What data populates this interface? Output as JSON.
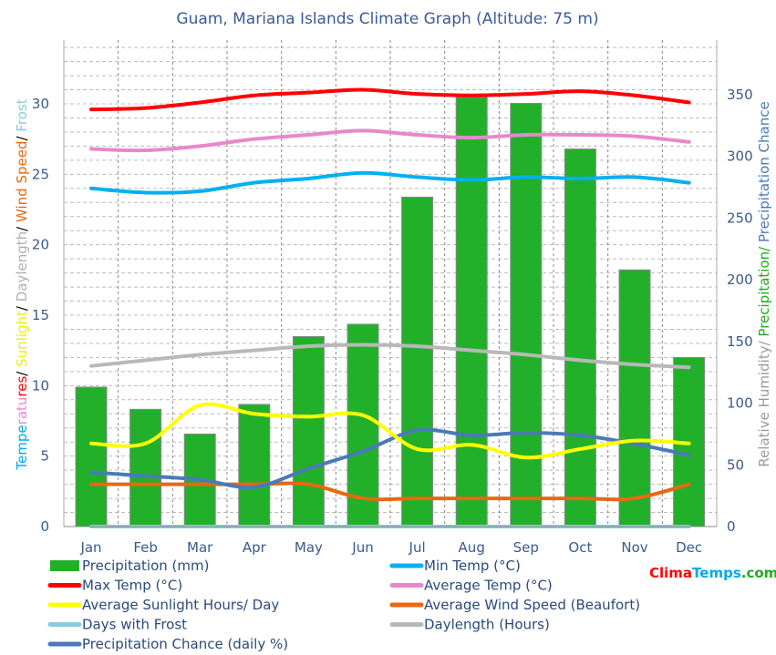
{
  "chart_data": {
    "type": "bar+line",
    "title": "Guam, Mariana Islands Climate Graph (Altitude: 75 m)",
    "categories": [
      "Jan",
      "Feb",
      "Mar",
      "Apr",
      "May",
      "Jun",
      "Jul",
      "Aug",
      "Sep",
      "Oct",
      "Nov",
      "Dec"
    ],
    "left_axis": {
      "label_parts": [
        {
          "text": "Tempe",
          "color": "#00aaee"
        },
        {
          "text": "ratu",
          "color": "#e888cc"
        },
        {
          "text": "res",
          "color": "#ff0000"
        },
        {
          "text": "/ ",
          "color": "#000000"
        },
        {
          "text": "Sunlight",
          "color": "#f0f000"
        },
        {
          "text": "/ ",
          "color": "#000000"
        },
        {
          "text": "Daylength",
          "color": "#b0b0b0"
        },
        {
          "text": "/ ",
          "color": "#000000"
        },
        {
          "text": "Wind Speed",
          "color": "#e86810"
        },
        {
          "text": "/ ",
          "color": "#000000"
        },
        {
          "text": "Frost",
          "color": "#88ccdd"
        }
      ],
      "ylim": [
        0,
        34
      ],
      "ticks": [
        "0",
        "5",
        "10",
        "15",
        "20",
        "25",
        "30"
      ]
    },
    "right_axis": {
      "label_parts": [
        {
          "text": "Relative Humidity/ ",
          "color": "#999999"
        },
        {
          "text": "Precipitation/ ",
          "color": "#22aa22"
        },
        {
          "text": "Precipitation Chance",
          "color": "#4a7ab8"
        }
      ],
      "ylim": [
        0,
        396
      ],
      "ticks": [
        "0",
        "50",
        "100",
        "150",
        "200",
        "250",
        "300",
        "350"
      ]
    },
    "grid": true,
    "series": [
      {
        "name": "Precipitation (mm)",
        "type": "bar",
        "axis": "right",
        "color": "#22b02a",
        "values": [
          113,
          95,
          75,
          99,
          154,
          164,
          267,
          348,
          343,
          306,
          208,
          137
        ]
      },
      {
        "name": "Min Temp (°C)",
        "type": "line",
        "axis": "left",
        "color": "#00b0f0",
        "values": [
          24.0,
          23.7,
          23.8,
          24.4,
          24.7,
          25.1,
          24.8,
          24.6,
          24.8,
          24.7,
          24.8,
          24.4
        ]
      },
      {
        "name": "Max Temp (°C)",
        "type": "line",
        "axis": "left",
        "color": "#ff0000",
        "values": [
          29.6,
          29.7,
          30.1,
          30.6,
          30.8,
          31.0,
          30.7,
          30.6,
          30.7,
          30.9,
          30.6,
          30.1
        ]
      },
      {
        "name": "Average Temp (°C)",
        "type": "line",
        "axis": "left",
        "color": "#e888cc",
        "values": [
          26.8,
          26.7,
          27.0,
          27.5,
          27.8,
          28.1,
          27.8,
          27.6,
          27.8,
          27.8,
          27.7,
          27.3
        ]
      },
      {
        "name": "Average Sunlight Hours/ Day",
        "type": "line",
        "axis": "left",
        "color": "#ffff00",
        "values": [
          5.9,
          5.9,
          8.6,
          8.0,
          7.8,
          7.9,
          5.5,
          5.8,
          4.9,
          5.5,
          6.1,
          5.9
        ]
      },
      {
        "name": "Average Wind Speed (Beaufort)",
        "type": "line",
        "axis": "left",
        "color": "#e86810",
        "values": [
          3,
          3,
          3,
          3,
          3,
          2,
          2,
          2,
          2,
          2,
          2,
          3
        ]
      },
      {
        "name": "Days with Frost",
        "type": "line",
        "axis": "left",
        "color": "#88ccdd",
        "values": [
          0,
          0,
          0,
          0,
          0,
          0,
          0,
          0,
          0,
          0,
          0,
          0
        ]
      },
      {
        "name": "Daylength (Hours)",
        "type": "line",
        "axis": "left",
        "color": "#b8b8b8",
        "values": [
          11.4,
          11.8,
          12.2,
          12.5,
          12.8,
          12.9,
          12.8,
          12.5,
          12.2,
          11.8,
          11.5,
          11.3
        ]
      },
      {
        "name": "Precipitation Chance (daily %)",
        "type": "line",
        "axis": "right",
        "color": "#4a7ab8",
        "values": [
          44,
          41,
          38,
          32,
          47,
          61,
          78,
          74,
          76,
          74,
          67,
          58
        ]
      }
    ]
  },
  "logo": {
    "part1": "Clima",
    "part2": "Temps",
    "part3": ".com",
    "color1": "#ff0000",
    "color2": "#00aaee",
    "color3": "#22aa22"
  }
}
